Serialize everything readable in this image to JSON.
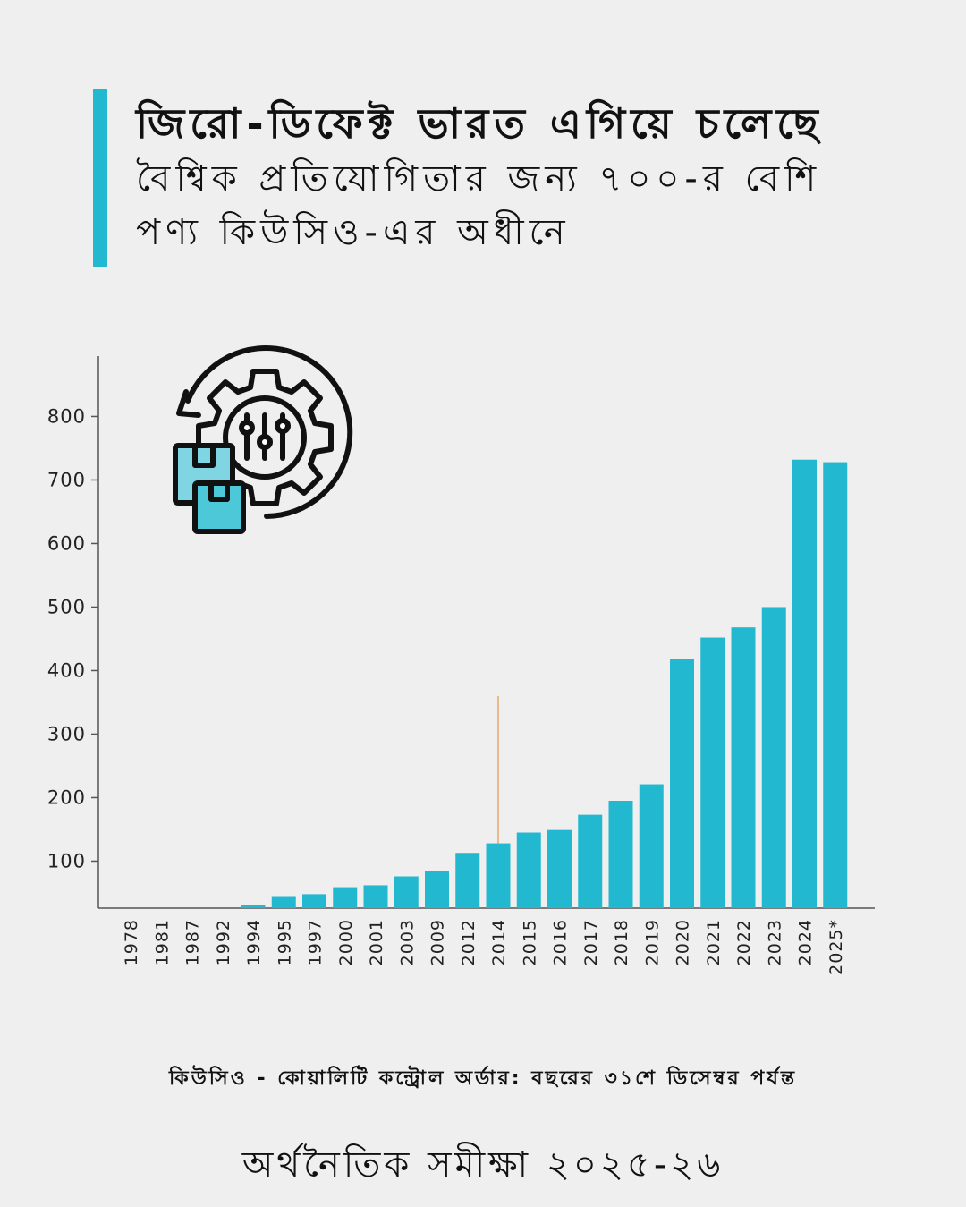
{
  "header": {
    "title": "জিরো-ডিফেক্ট ভারত এগিয়ে চলেছে",
    "subtitle": "বৈশ্বিক প্রতিযোগিতার জন্য ৭০০-র বেশি পণ্য কিউসিও-এর অধীনে"
  },
  "chart_data": {
    "type": "bar",
    "categories": [
      "1978",
      "1981",
      "1987",
      "1992",
      "1994",
      "1995",
      "1997",
      "2000",
      "2001",
      "2003",
      "2009",
      "2012",
      "2014",
      "2015",
      "2016",
      "2017",
      "2018",
      "2019",
      "2020",
      "2021",
      "2022",
      "2023",
      "2024",
      "2025*"
    ],
    "values": [
      15,
      23,
      25,
      26,
      31,
      45,
      48,
      59,
      62,
      76,
      84,
      113,
      128,
      145,
      149,
      173,
      195,
      221,
      418,
      452,
      468,
      500,
      732,
      728
    ],
    "ylim": [
      0,
      860
    ],
    "yticks": [
      100,
      200,
      300,
      400,
      500,
      600,
      700,
      800
    ],
    "marker_line_category": "2014",
    "grid": false,
    "bar_color": "#22b8cf",
    "marker_color": "#e6a96b"
  },
  "icon": "gear-with-boxes-icon",
  "footnote": "কিউসিও - কোয়ালিটি কন্ট্রোল অর্ডার: বছরের ৩১শে ডিসেম্বর পর্যন্ত",
  "source": "অর্থনৈতিক সমীক্ষা ২০২৫-২৬",
  "colors": {
    "accent": "#22b8cf",
    "background": "#efefef",
    "text": "#111111"
  }
}
